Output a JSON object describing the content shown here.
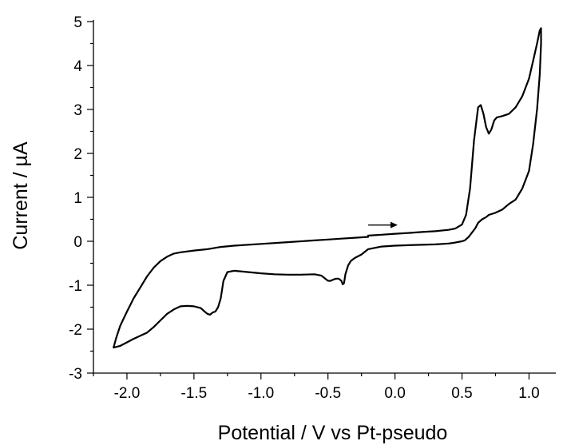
{
  "chart_data": {
    "type": "line",
    "title": "",
    "xlabel": "Potential / V vs Pt-pseudo",
    "ylabel": "Current / µA",
    "xlim": [
      -2.25,
      1.2
    ],
    "ylim": [
      -3,
      5
    ],
    "x_ticks": [
      -2.0,
      -1.5,
      -1.0,
      -0.5,
      0.0,
      0.5,
      1.0
    ],
    "x_tick_labels": [
      "-2.0",
      "-1.5",
      "-1.0",
      "-0.5",
      "0.0",
      "0.5",
      "1.0"
    ],
    "y_ticks": [
      -3,
      -2,
      -1,
      0,
      1,
      2,
      3,
      4,
      5
    ],
    "y_tick_labels": [
      "-3",
      "-2",
      "-1",
      "0",
      "1",
      "2",
      "3",
      "4",
      "5"
    ],
    "grid": false,
    "legend": "none",
    "annotations": [
      {
        "type": "arrow",
        "direction": "right",
        "x_start": -0.2,
        "x_end": 0.02,
        "y": 0.37
      }
    ],
    "series": [
      {
        "x": [
          -0.2,
          -0.1,
          0.0,
          0.1,
          0.2,
          0.3,
          0.4,
          0.45,
          0.5,
          0.53,
          0.56,
          0.59,
          0.62,
          0.64,
          0.66,
          0.68,
          0.7,
          0.72,
          0.74,
          0.76,
          0.8,
          0.85,
          0.9,
          0.95,
          1.0,
          1.03,
          1.06,
          1.08,
          1.09,
          1.09,
          1.08,
          1.06,
          1.03,
          1.0,
          0.95,
          0.9,
          0.85,
          0.8,
          0.75,
          0.7,
          0.68,
          0.65,
          0.62,
          0.6,
          0.57,
          0.55,
          0.52,
          0.5,
          0.45,
          0.4,
          0.3,
          0.2,
          0.1,
          0.0,
          -0.1,
          -0.2,
          -0.25,
          -0.3,
          -0.33,
          -0.35,
          -0.37,
          -0.38,
          -0.39,
          -0.4,
          -0.42,
          -0.44,
          -0.46,
          -0.48,
          -0.5,
          -0.52,
          -0.55,
          -0.6,
          -0.7,
          -0.8,
          -0.9,
          -1.0,
          -1.1,
          -1.2,
          -1.25,
          -1.28,
          -1.3,
          -1.32,
          -1.34,
          -1.36,
          -1.38,
          -1.4,
          -1.42,
          -1.45,
          -1.5,
          -1.55,
          -1.6,
          -1.65,
          -1.7,
          -1.75,
          -1.8,
          -1.85,
          -1.9,
          -1.95,
          -2.0,
          -2.05,
          -2.1,
          -2.08,
          -2.05,
          -2.0,
          -1.95,
          -1.9,
          -1.85,
          -1.8,
          -1.75,
          -1.7,
          -1.65,
          -1.6,
          -1.5,
          -1.4,
          -1.3,
          -1.2,
          -1.0,
          -0.8,
          -0.6,
          -0.5,
          -0.4,
          -0.3,
          -0.2
        ],
        "y": [
          0.13,
          0.15,
          0.17,
          0.19,
          0.21,
          0.23,
          0.26,
          0.29,
          0.38,
          0.6,
          1.2,
          2.3,
          3.05,
          3.1,
          2.9,
          2.6,
          2.45,
          2.55,
          2.75,
          2.82,
          2.85,
          2.9,
          3.05,
          3.3,
          3.7,
          4.1,
          4.5,
          4.8,
          4.85,
          4.5,
          3.8,
          3.0,
          2.2,
          1.6,
          1.2,
          0.95,
          0.85,
          0.72,
          0.65,
          0.6,
          0.55,
          0.5,
          0.42,
          0.3,
          0.18,
          0.1,
          0.02,
          0.0,
          -0.03,
          -0.05,
          -0.07,
          -0.08,
          -0.09,
          -0.1,
          -0.12,
          -0.18,
          -0.3,
          -0.38,
          -0.45,
          -0.55,
          -0.75,
          -0.95,
          -0.98,
          -0.9,
          -0.85,
          -0.85,
          -0.87,
          -0.9,
          -0.9,
          -0.85,
          -0.78,
          -0.75,
          -0.76,
          -0.76,
          -0.75,
          -0.73,
          -0.7,
          -0.67,
          -0.7,
          -0.9,
          -1.3,
          -1.5,
          -1.6,
          -1.62,
          -1.67,
          -1.65,
          -1.6,
          -1.52,
          -1.48,
          -1.47,
          -1.48,
          -1.55,
          -1.65,
          -1.8,
          -1.95,
          -2.08,
          -2.15,
          -2.22,
          -2.3,
          -2.38,
          -2.42,
          -2.2,
          -1.92,
          -1.6,
          -1.3,
          -1.05,
          -0.8,
          -0.6,
          -0.45,
          -0.35,
          -0.28,
          -0.25,
          -0.21,
          -0.18,
          -0.13,
          -0.1,
          -0.06,
          -0.02,
          0.02,
          0.04,
          0.06,
          0.08,
          0.1
        ]
      }
    ]
  }
}
